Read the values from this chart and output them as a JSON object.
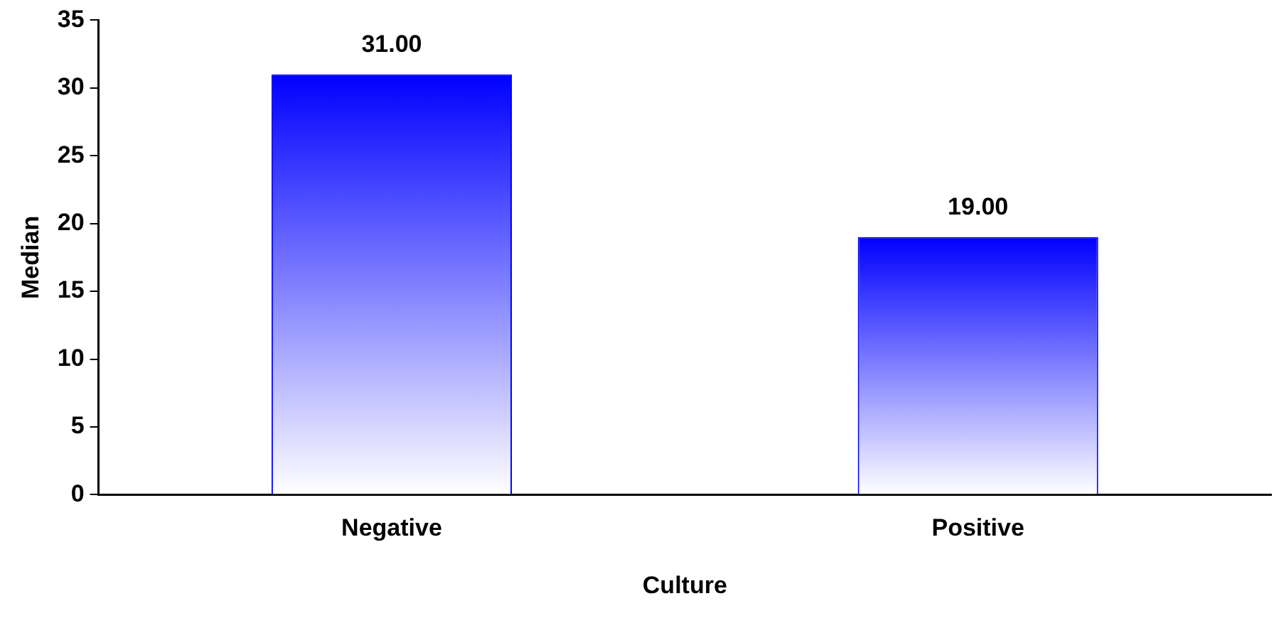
{
  "chart_data": {
    "type": "bar",
    "xlabel": "Culture",
    "ylabel": "Median",
    "categories": [
      "Negative",
      "Positive"
    ],
    "values": [
      31,
      19
    ],
    "value_labels": [
      "31.00",
      "19.00"
    ],
    "color": "#0000ff",
    "ylim": [
      0,
      35
    ],
    "yticks": [
      0,
      5,
      10,
      15,
      20,
      25,
      30,
      35
    ],
    "grid": false,
    "legend": false
  }
}
